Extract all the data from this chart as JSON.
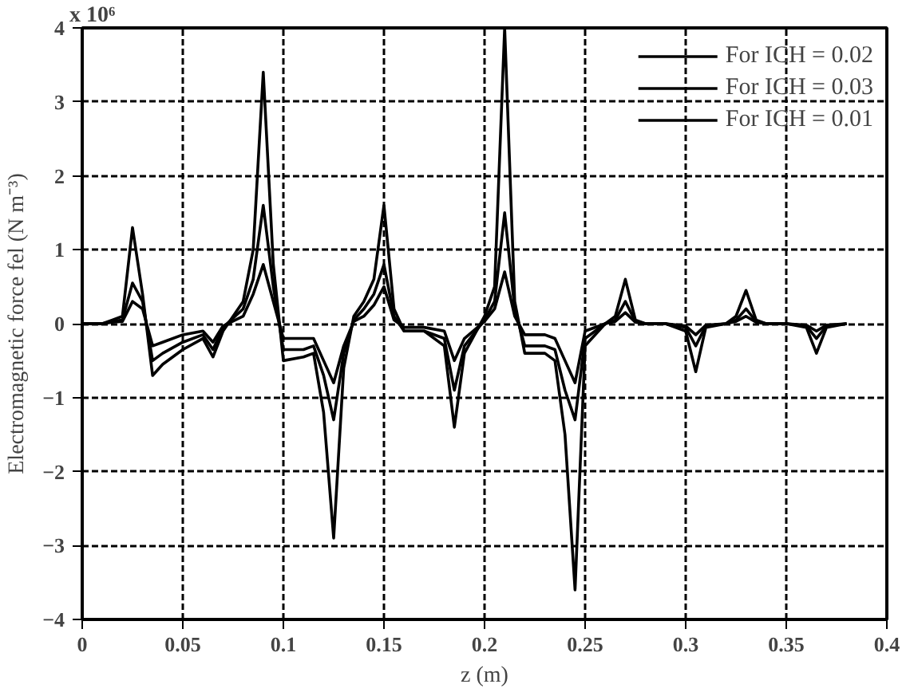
{
  "chart_data": {
    "type": "line",
    "xlabel": "z (m)",
    "ylabel": "Electromagnetic force fel (N m⁻³)",
    "annotations": [
      "x 10⁶"
    ],
    "x": [
      0,
      0.01,
      0.015,
      0.02,
      0.025,
      0.03,
      0.035,
      0.04,
      0.05,
      0.06,
      0.065,
      0.07,
      0.08,
      0.085,
      0.09,
      0.095,
      0.1,
      0.11,
      0.115,
      0.12,
      0.125,
      0.13,
      0.135,
      0.14,
      0.145,
      0.15,
      0.155,
      0.16,
      0.17,
      0.18,
      0.185,
      0.19,
      0.2,
      0.205,
      0.21,
      0.215,
      0.22,
      0.23,
      0.235,
      0.24,
      0.245,
      0.25,
      0.26,
      0.265,
      0.27,
      0.275,
      0.28,
      0.29,
      0.3,
      0.305,
      0.31,
      0.32,
      0.325,
      0.33,
      0.335,
      0.34,
      0.35,
      0.36,
      0.365,
      0.37,
      0.38
    ],
    "series": [
      {
        "name": "For ICH = 0.02",
        "color": "#000000",
        "values": [
          0,
          0,
          0.03,
          0.05,
          0.55,
          0.3,
          -0.5,
          -0.4,
          -0.25,
          -0.15,
          -0.35,
          -0.05,
          0.2,
          0.6,
          1.6,
          0.5,
          -0.35,
          -0.35,
          -0.3,
          -0.7,
          -1.3,
          -0.4,
          0.05,
          0.2,
          0.4,
          0.8,
          0.1,
          -0.1,
          -0.1,
          -0.2,
          -0.9,
          -0.3,
          0.05,
          0.3,
          1.5,
          0.2,
          -0.3,
          -0.3,
          -0.35,
          -0.9,
          -1.3,
          -0.2,
          0,
          0.05,
          0.3,
          0.03,
          0,
          0,
          -0.05,
          -0.3,
          -0.03,
          0,
          0.05,
          0.2,
          0.03,
          0,
          0,
          -0.03,
          -0.2,
          -0.03,
          0
        ]
      },
      {
        "name": "For ICH = 0.03",
        "color": "#000000",
        "values": [
          0,
          0,
          0.05,
          0.1,
          1.3,
          0.4,
          -0.7,
          -0.55,
          -0.35,
          -0.2,
          -0.45,
          -0.1,
          0.3,
          1.0,
          3.4,
          0.8,
          -0.5,
          -0.45,
          -0.4,
          -1.2,
          -2.9,
          -0.6,
          0.1,
          0.3,
          0.6,
          1.6,
          0.2,
          -0.1,
          -0.1,
          -0.3,
          -1.4,
          -0.4,
          0.1,
          0.5,
          4.0,
          0.3,
          -0.4,
          -0.4,
          -0.5,
          -1.5,
          -3.6,
          -0.3,
          0,
          0.1,
          0.6,
          0.05,
          0,
          0,
          -0.1,
          -0.65,
          -0.05,
          0,
          0.1,
          0.45,
          0.05,
          0,
          0,
          -0.05,
          -0.4,
          -0.05,
          0
        ]
      },
      {
        "name": "For ICH = 0.01",
        "color": "#000000",
        "values": [
          0,
          0,
          0.02,
          0.03,
          0.3,
          0.2,
          -0.3,
          -0.25,
          -0.15,
          -0.1,
          -0.25,
          -0.03,
          0.1,
          0.4,
          0.8,
          0.3,
          -0.2,
          -0.2,
          -0.2,
          -0.5,
          -0.8,
          -0.3,
          0.03,
          0.1,
          0.25,
          0.5,
          0.05,
          -0.05,
          -0.05,
          -0.1,
          -0.5,
          -0.2,
          0.03,
          0.2,
          0.7,
          0.1,
          -0.15,
          -0.15,
          -0.2,
          -0.5,
          -0.8,
          -0.1,
          0,
          0.03,
          0.15,
          0.02,
          0,
          0,
          -0.03,
          -0.15,
          -0.02,
          0,
          0.03,
          0.1,
          0.02,
          0,
          0,
          -0.02,
          -0.1,
          -0.02,
          0
        ]
      }
    ],
    "xlim": [
      0,
      0.4
    ],
    "xticks": [
      0,
      0.05,
      0.1,
      0.15,
      0.2,
      0.25,
      0.3,
      0.35,
      0.4
    ],
    "ylim": [
      -4,
      4
    ],
    "yticks": [
      -4,
      -3,
      -2,
      -1,
      0,
      1,
      2,
      3,
      4
    ],
    "grid": true,
    "legend": "top right",
    "line_style": "solid"
  }
}
